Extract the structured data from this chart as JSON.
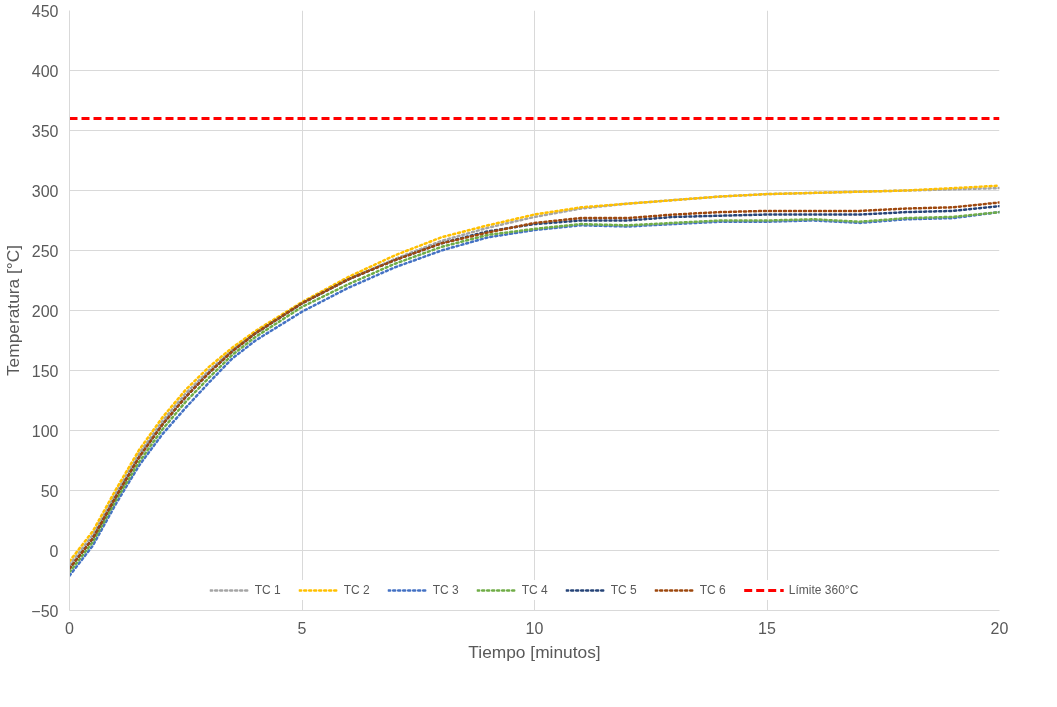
{
  "chart_data": {
    "type": "line",
    "xlabel": "Tiempo [minutos]",
    "ylabel": "Temperatura [°C]",
    "x": [
      0,
      0.5,
      1,
      1.5,
      2,
      2.5,
      3,
      3.5,
      4,
      5,
      6,
      7,
      8,
      9,
      10,
      11,
      12,
      13,
      14,
      15,
      16,
      17,
      18,
      19,
      20
    ],
    "series": [
      {
        "name": "TC 1",
        "color": "#a5a5a5",
        "values": [
          -12,
          13,
          48,
          81,
          108,
          131,
          150,
          167,
          181,
          206,
          226,
          243,
          258,
          269,
          278,
          285,
          289,
          292,
          295,
          297,
          298,
          299,
          300,
          301,
          302
        ]
      },
      {
        "name": "TC 2",
        "color": "#ffc000",
        "values": [
          -9,
          16,
          51,
          84,
          111,
          134,
          153,
          169,
          183,
          207,
          228,
          246,
          261,
          271,
          280,
          286,
          289,
          292,
          295,
          297,
          298,
          299,
          300,
          302,
          304
        ]
      },
      {
        "name": "TC 3",
        "color": "#4472c4",
        "values": [
          -21,
          4,
          39,
          71,
          97,
          119,
          140,
          160,
          175,
          199,
          219,
          236,
          250,
          261,
          267,
          271,
          270,
          272,
          274,
          274,
          275,
          273,
          276,
          277,
          282
        ]
      },
      {
        "name": "TC 4",
        "color": "#70ad47",
        "values": [
          -18,
          7,
          42,
          74,
          101,
          124,
          144,
          163,
          178,
          203,
          222,
          239,
          253,
          263,
          268,
          272,
          271,
          273,
          275,
          275,
          276,
          274,
          277,
          278,
          282
        ]
      },
      {
        "name": "TC 5",
        "color": "#264478",
        "values": [
          -15,
          10,
          45,
          78,
          105,
          128,
          148,
          166,
          181,
          206,
          226,
          242,
          256,
          266,
          272,
          275,
          275,
          278,
          279,
          280,
          280,
          280,
          282,
          283,
          287
        ]
      },
      {
        "name": "TC 6",
        "color": "#9e480e",
        "values": [
          -15,
          10,
          45,
          78,
          105,
          128,
          148,
          166,
          181,
          206,
          226,
          242,
          256,
          265,
          273,
          277,
          277,
          280,
          282,
          283,
          283,
          283,
          285,
          286,
          290
        ]
      }
    ],
    "ref_lines": [
      {
        "axis": "y",
        "value": 360,
        "label": "Límite 360°C",
        "color": "#ff0000",
        "line_style": "dashed"
      }
    ],
    "xlim": [
      0,
      20
    ],
    "xticks": [
      0,
      5,
      10,
      15,
      20
    ],
    "ylim": [
      -50,
      450
    ],
    "yticks": [
      -50,
      0,
      50,
      100,
      150,
      200,
      250,
      300,
      350,
      400,
      450
    ],
    "grid": true,
    "legend": "bottom",
    "marker": "none",
    "line_style": "dotted"
  }
}
